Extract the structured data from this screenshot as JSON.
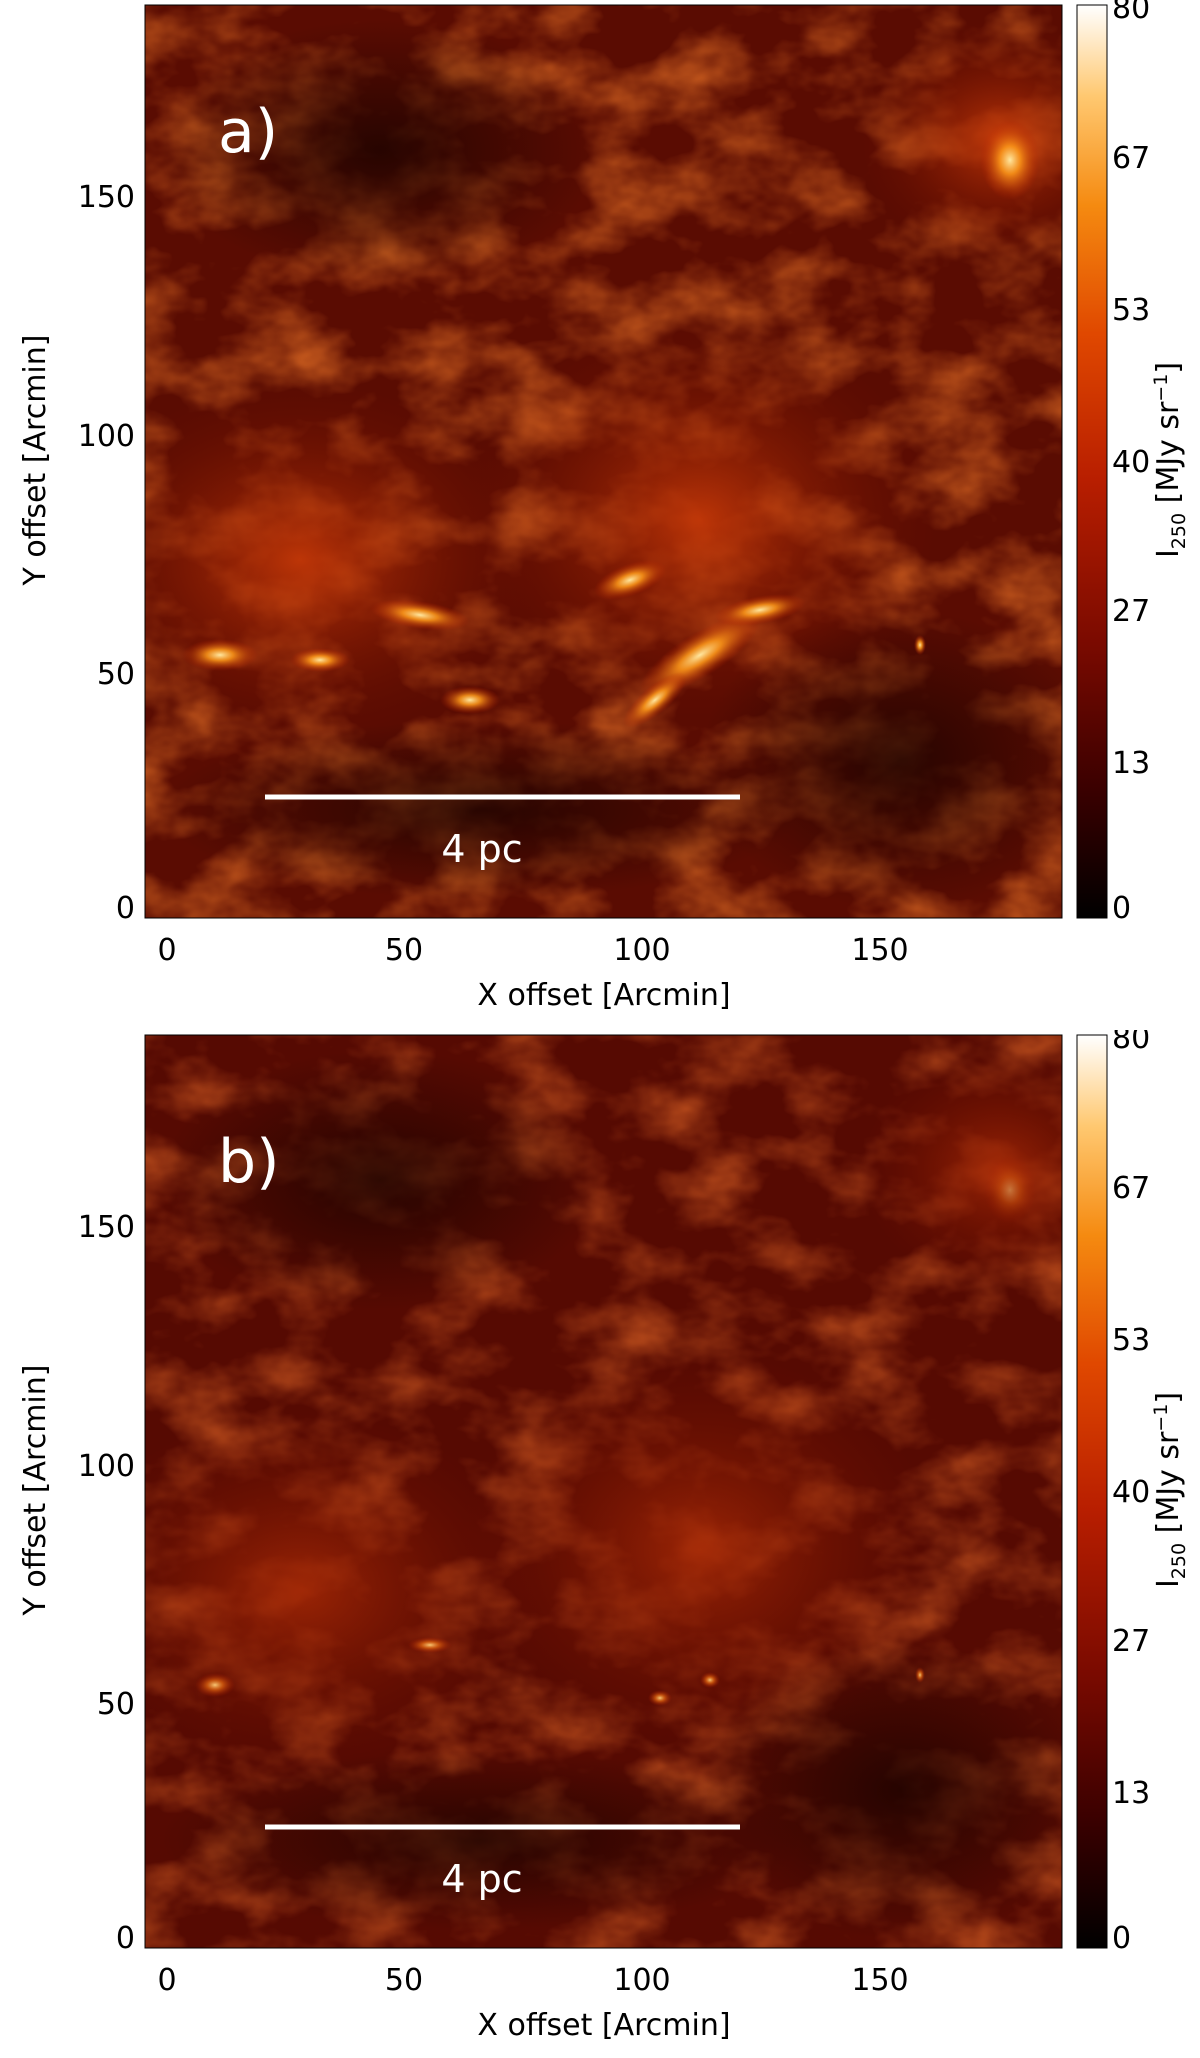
{
  "panels": [
    {
      "label": "a)",
      "scalebar_label": "4 pc",
      "xlabel": "X offset [Arcmin]",
      "ylabel": "Y offset [Arcmin]",
      "x_ticks": [
        "0",
        "50",
        "100",
        "150"
      ],
      "y_ticks": [
        "0",
        "50",
        "100",
        "150"
      ],
      "colorbar_ticks": [
        "0",
        "13",
        "27",
        "40",
        "53",
        "67",
        "80"
      ],
      "colorbar_label_main": "I",
      "colorbar_label_sub": "250",
      "colorbar_label_unit": " [MJy sr",
      "colorbar_label_sup": "−1",
      "colorbar_label_end": "]"
    },
    {
      "label": "b)",
      "scalebar_label": "4 pc",
      "xlabel": "X offset [Arcmin]",
      "ylabel": "Y offset [Arcmin]",
      "x_ticks": [
        "0",
        "50",
        "100",
        "150"
      ],
      "y_ticks": [
        "0",
        "50",
        "100",
        "150"
      ],
      "colorbar_ticks": [
        "0",
        "13",
        "27",
        "40",
        "53",
        "67",
        "80"
      ],
      "colorbar_label_main": "I",
      "colorbar_label_sub": "250",
      "colorbar_label_unit": " [MJy sr",
      "colorbar_label_sup": "−1",
      "colorbar_label_end": "]"
    }
  ],
  "colormap": [
    "#000000",
    "#3a0000",
    "#7a0a00",
    "#b81e00",
    "#e04800",
    "#f58a10",
    "#ffc870",
    "#ffffff"
  ],
  "colorbar_range": [
    0,
    80
  ],
  "axis_range": [
    0,
    190
  ]
}
